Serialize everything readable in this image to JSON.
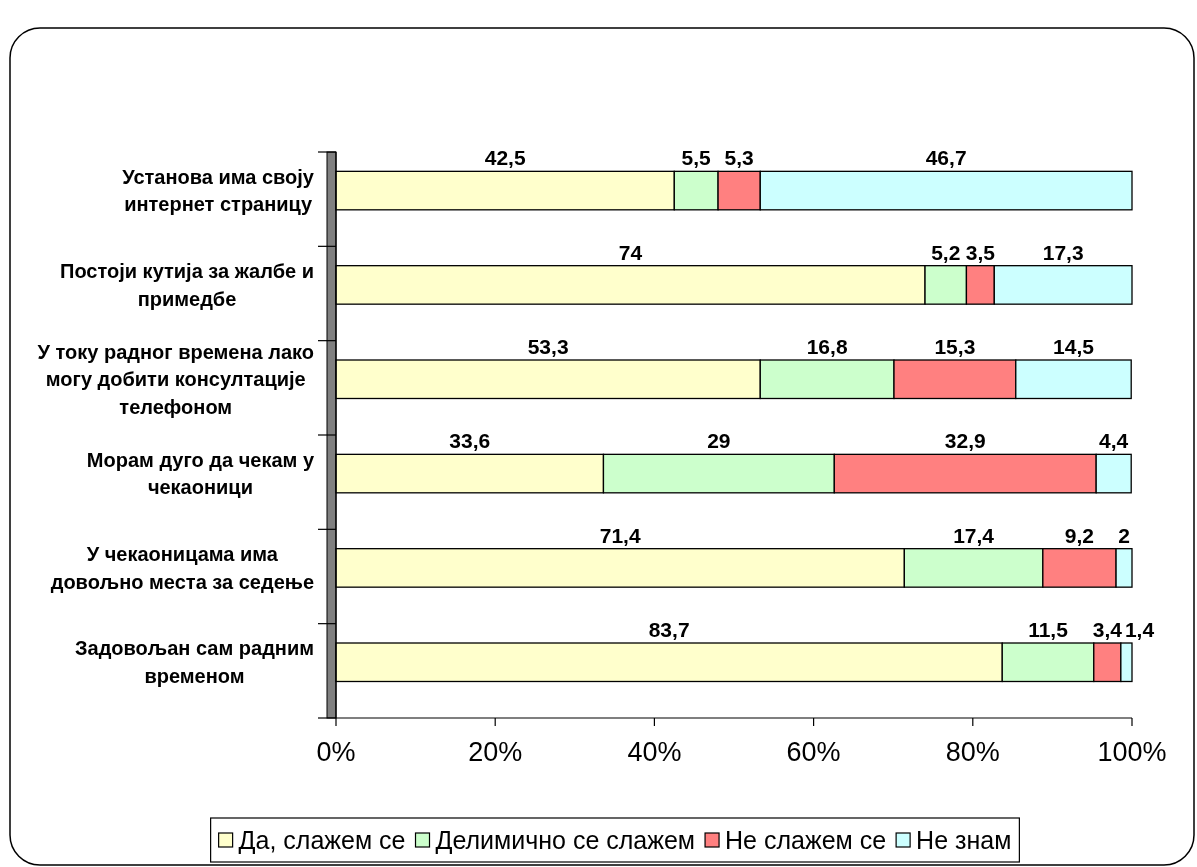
{
  "chart_data": {
    "type": "bar",
    "orientation": "horizontal",
    "stacked": true,
    "categories": [
      "Установа има своју интернет страницу",
      "Постоји кутија за жалбе и примедбе",
      "У току радног времена лако могу добити консултације телефоном",
      "Морам дуго да чекам у чекаоници",
      "У чекаоницама има довољно места за седење",
      "Задовољан сам радним временом"
    ],
    "series": [
      {
        "name": "Да, слажем се",
        "color": "#ffffcc",
        "values": [
          42.5,
          74,
          53.3,
          33.6,
          71.4,
          83.7
        ],
        "value_labels": [
          "42,5",
          "74",
          "53,3",
          "33,6",
          "71,4",
          "83,7"
        ]
      },
      {
        "name": "Делимично се слажем",
        "color": "#ccffcc",
        "values": [
          5.5,
          5.2,
          16.8,
          29,
          17.4,
          11.5
        ],
        "value_labels": [
          "5,5",
          "5,2",
          "16,8",
          "29",
          "17,4",
          "11,5"
        ]
      },
      {
        "name": "Не слажем се",
        "color": "#ff8080",
        "values": [
          5.3,
          3.5,
          15.3,
          32.9,
          9.2,
          3.4
        ],
        "value_labels": [
          "5,3",
          "3,5",
          "15,3",
          "32,9",
          "9,2",
          "3,4"
        ]
      },
      {
        "name": "Не знам",
        "color": "#ccffff",
        "values": [
          46.7,
          17.3,
          14.5,
          4.4,
          2,
          1.4
        ],
        "value_labels": [
          "46,7",
          "17,3",
          "14,5",
          "4,4",
          "2",
          "1,4"
        ]
      }
    ],
    "xlim": [
      0,
      100
    ],
    "xticks": [
      {
        "value": 0,
        "label": "0%"
      },
      {
        "value": 20,
        "label": "20%"
      },
      {
        "value": 40,
        "label": "40%"
      },
      {
        "value": 60,
        "label": "60%"
      },
      {
        "value": 80,
        "label": "80%"
      },
      {
        "value": 100,
        "label": "100%"
      }
    ],
    "legend": "bottom"
  }
}
